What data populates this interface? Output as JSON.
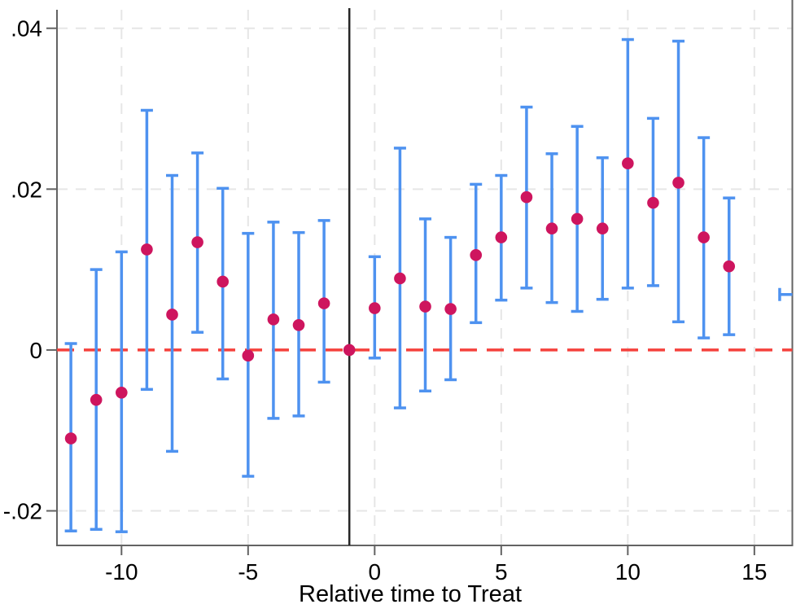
{
  "chart_data": {
    "type": "scatter",
    "subtype": "event-study-errorbar",
    "title": "",
    "xlabel": "Relative time to Treat",
    "ylabel": "",
    "xlim": [
      -12.55,
      16.5
    ],
    "ylim": [
      -0.0243,
      0.0423
    ],
    "grid": true,
    "x_ticks": [
      -10,
      -5,
      0,
      5,
      10,
      15
    ],
    "x_tick_labels": [
      "-10",
      "-5",
      "0",
      "5",
      "10",
      "15"
    ],
    "y_ticks": [
      0.04,
      0.02,
      0,
      -0.02
    ],
    "y_tick_labels": [
      ".04",
      ".02",
      "0",
      "-.02"
    ],
    "reference_lines": {
      "horizontal_zero_line_y": 0,
      "vertical_treat_line_x": -1
    },
    "series": [
      {
        "name": "coefficient-estimates-with-95ci",
        "points": [
          {
            "x": -12,
            "est": -0.011,
            "lo": -0.0225,
            "hi": 0.0008
          },
          {
            "x": -11,
            "est": -0.0062,
            "lo": -0.0223,
            "hi": 0.01
          },
          {
            "x": -10,
            "est": -0.0053,
            "lo": -0.0226,
            "hi": 0.0122
          },
          {
            "x": -9,
            "est": 0.0125,
            "lo": -0.0049,
            "hi": 0.0298
          },
          {
            "x": -8,
            "est": 0.0044,
            "lo": -0.0126,
            "hi": 0.0217
          },
          {
            "x": -7,
            "est": 0.0134,
            "lo": 0.0022,
            "hi": 0.0245
          },
          {
            "x": -6,
            "est": 0.0085,
            "lo": -0.0036,
            "hi": 0.0201
          },
          {
            "x": -5,
            "est": -0.0007,
            "lo": -0.0157,
            "hi": 0.0145
          },
          {
            "x": -4,
            "est": 0.0038,
            "lo": -0.0085,
            "hi": 0.0159
          },
          {
            "x": -3,
            "est": 0.0031,
            "lo": -0.0082,
            "hi": 0.0146
          },
          {
            "x": -2,
            "est": 0.0058,
            "lo": -0.004,
            "hi": 0.0161
          },
          {
            "x": -1,
            "est": 0.0,
            "lo": null,
            "hi": null
          },
          {
            "x": 0,
            "est": 0.0052,
            "lo": -0.001,
            "hi": 0.0116
          },
          {
            "x": 1,
            "est": 0.0089,
            "lo": -0.0072,
            "hi": 0.0251
          },
          {
            "x": 2,
            "est": 0.0054,
            "lo": -0.0051,
            "hi": 0.0163
          },
          {
            "x": 3,
            "est": 0.0051,
            "lo": -0.0037,
            "hi": 0.014
          },
          {
            "x": 4,
            "est": 0.0118,
            "lo": 0.0034,
            "hi": 0.0206
          },
          {
            "x": 5,
            "est": 0.014,
            "lo": 0.0062,
            "hi": 0.0217
          },
          {
            "x": 6,
            "est": 0.019,
            "lo": 0.0077,
            "hi": 0.0302
          },
          {
            "x": 7,
            "est": 0.0151,
            "lo": 0.0059,
            "hi": 0.0244
          },
          {
            "x": 8,
            "est": 0.0163,
            "lo": 0.0048,
            "hi": 0.0278
          },
          {
            "x": 9,
            "est": 0.0151,
            "lo": 0.0063,
            "hi": 0.0239
          },
          {
            "x": 10,
            "est": 0.0232,
            "lo": 0.0077,
            "hi": 0.0386
          },
          {
            "x": 11,
            "est": 0.0183,
            "lo": 0.008,
            "hi": 0.0288
          },
          {
            "x": 12,
            "est": 0.0208,
            "lo": 0.0035,
            "hi": 0.0384
          },
          {
            "x": 13,
            "est": 0.014,
            "lo": 0.0015,
            "hi": 0.0264
          },
          {
            "x": 14,
            "est": 0.0104,
            "lo": 0.0019,
            "hi": 0.0189
          }
        ]
      }
    ],
    "clipped_right_ci_cap": {
      "x": 16,
      "y": 0.0069
    },
    "legend": null,
    "colors": {
      "marker": "#ce155e",
      "ci_bar": "#4e92f0",
      "zero_line": "#f5413c",
      "treat_line": "#262626",
      "grid": "#e6e6e6",
      "axis": "#636363",
      "text": "#000000"
    }
  }
}
